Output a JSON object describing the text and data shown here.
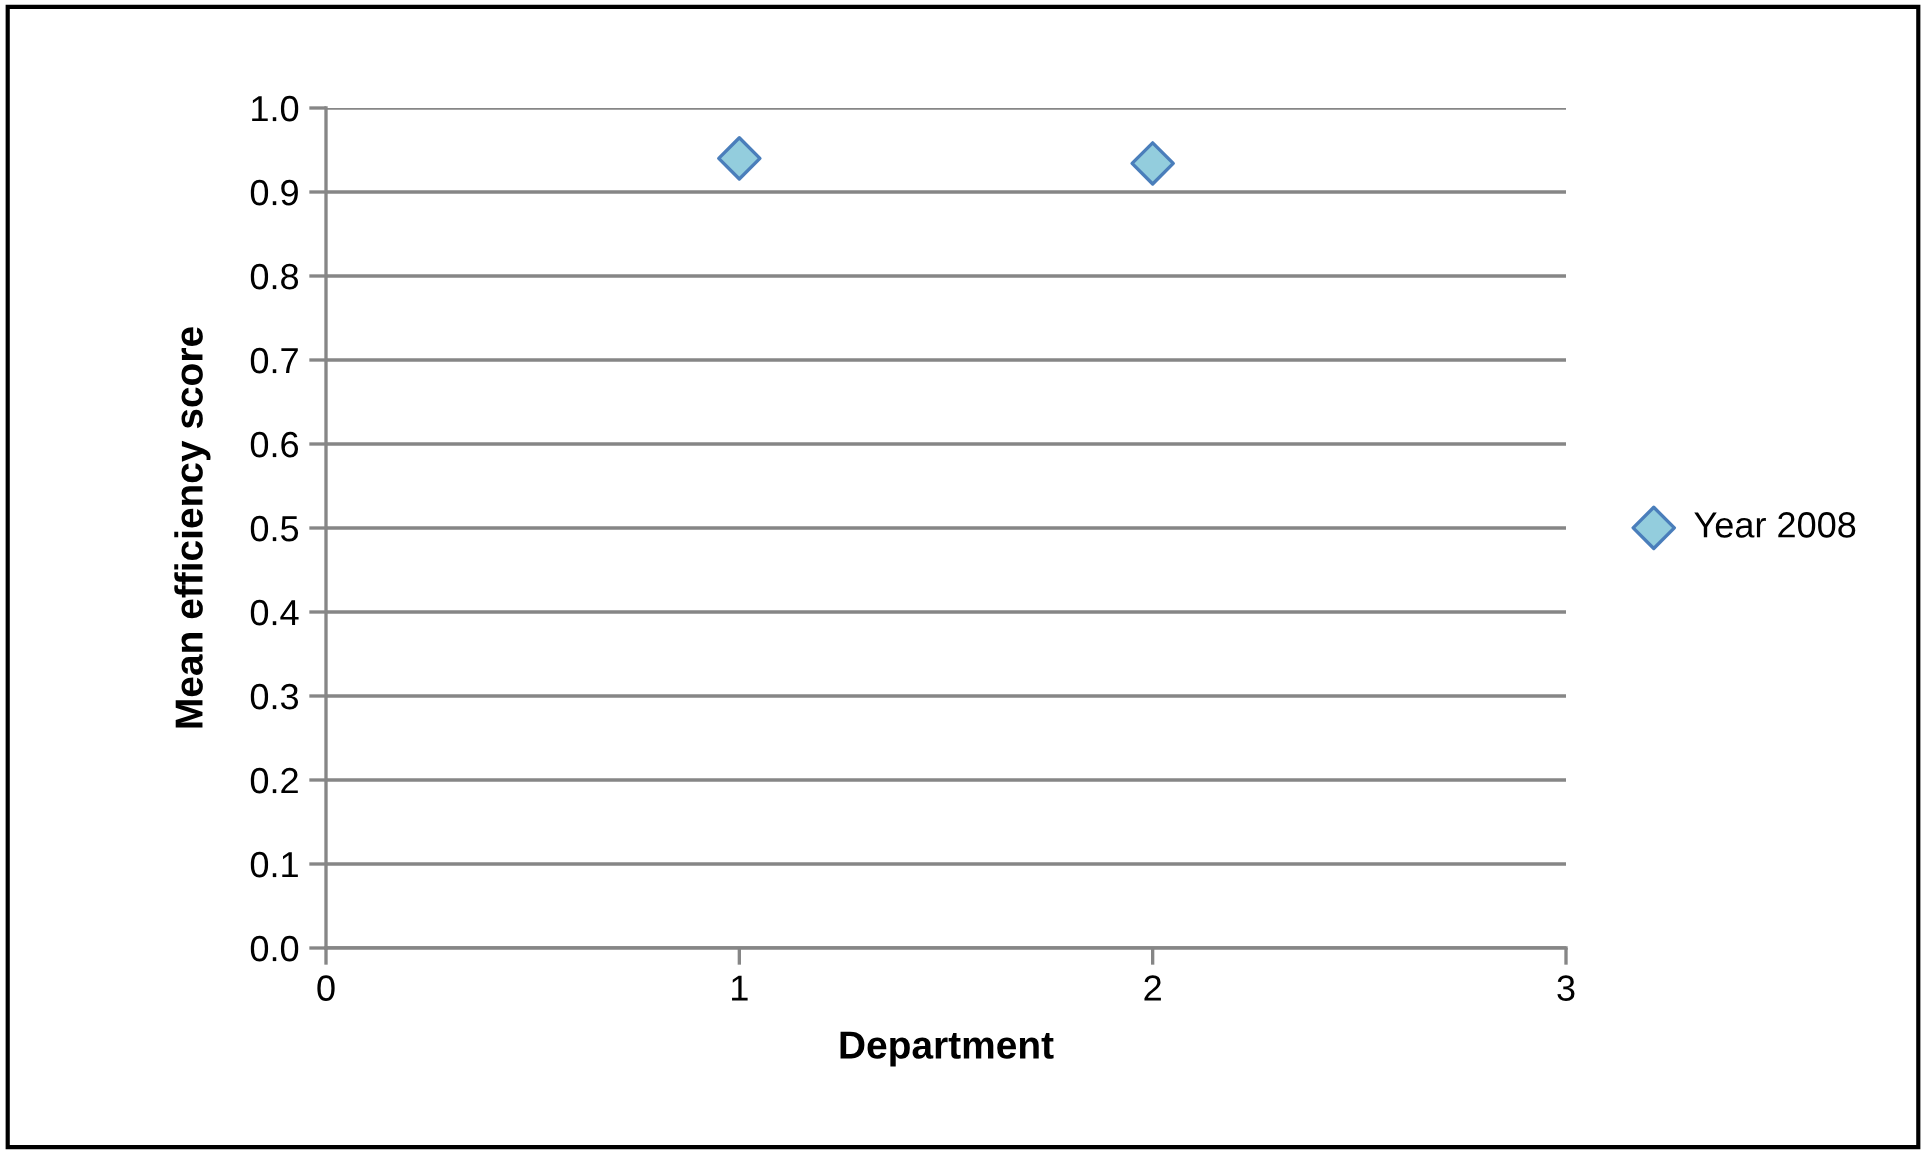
{
  "chart_data": {
    "type": "scatter",
    "xlabel": "Department",
    "ylabel": "Mean efficiency score",
    "series": [
      {
        "name": "Year 2008",
        "color": "#93cddd",
        "x": [
          1,
          2
        ],
        "values": [
          0.94,
          0.934
        ]
      }
    ],
    "xlim": [
      0,
      3
    ],
    "xticks": [
      0,
      1,
      2,
      3
    ],
    "ylim": [
      0,
      1
    ],
    "yticks": [
      {
        "value": 0,
        "label": "0.0"
      },
      {
        "value": 0.1,
        "label": "0.1"
      },
      {
        "value": 0.2,
        "label": "0.2"
      },
      {
        "value": 0.3,
        "label": "0.3"
      },
      {
        "value": 0.4,
        "label": "0.4"
      },
      {
        "value": 0.5,
        "label": "0.5"
      },
      {
        "value": 0.6,
        "label": "0.6"
      },
      {
        "value": 0.7,
        "label": "0.7"
      },
      {
        "value": 0.8,
        "label": "0.8"
      },
      {
        "value": 0.9,
        "label": "0.9"
      },
      {
        "value": 1,
        "label": "1.0"
      }
    ],
    "grid": "y",
    "legend": "right",
    "marker": "diamond"
  }
}
